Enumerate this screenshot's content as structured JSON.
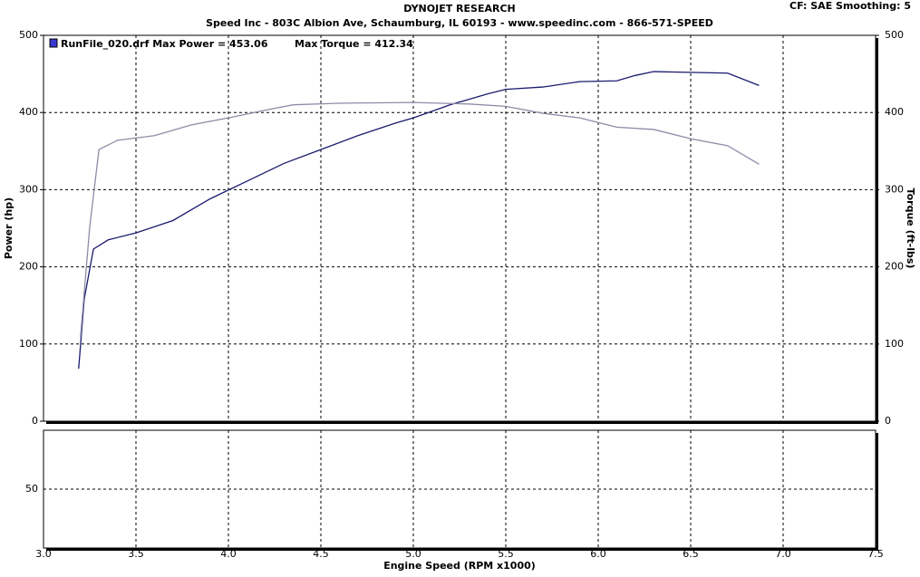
{
  "chart_data": {
    "type": "line",
    "title": "DYNOJET RESEARCH",
    "subtitle": "Speed Inc - 803C Albion Ave, Schaumburg, IL 60193 - www.speedinc.com - 866-571-SPEED",
    "settings_label": "CF: SAE  Smoothing: 5",
    "legend": [
      "RunFile_020.drf Max Power = 453.06",
      "Max Torque = 412.34"
    ],
    "xlabel": "Engine Speed (RPM x1000)",
    "ylabel": "Power (hp)",
    "y2label": "Torque (ft-lbs)",
    "xlim": [
      3.0,
      7.5
    ],
    "xticks": [
      {
        "value": 3.0,
        "label": "3.0"
      },
      {
        "value": 3.5,
        "label": "3.5"
      },
      {
        "value": 4.0,
        "label": "4.0"
      },
      {
        "value": 4.5,
        "label": "4.5"
      },
      {
        "value": 5.0,
        "label": "5.0"
      },
      {
        "value": 5.5,
        "label": "5.5"
      },
      {
        "value": 6.0,
        "label": "6.0"
      },
      {
        "value": 6.5,
        "label": "6.5"
      },
      {
        "value": 7.0,
        "label": "7.0"
      },
      {
        "value": 7.5,
        "label": "7.5"
      }
    ],
    "ylim": [
      0,
      500
    ],
    "yticks": [
      0,
      100,
      200,
      300,
      400,
      500
    ],
    "y2lim": [
      0,
      500
    ],
    "y2ticks": [
      0,
      100,
      200,
      300,
      400,
      500
    ],
    "lower_ylim": [
      0,
      100
    ],
    "lower_yticks": [
      50
    ],
    "grid": true,
    "series": [
      {
        "color": "#1a1a6e",
        "x": [
          3.19,
          3.22,
          3.27,
          3.35,
          3.5,
          3.7,
          3.9,
          4.1,
          4.3,
          4.5,
          4.7,
          4.9,
          5.0,
          5.2,
          5.4,
          5.5,
          5.7,
          5.9,
          6.1,
          6.2,
          6.3,
          6.5,
          6.7,
          6.87
        ],
        "values": [
          68,
          158,
          223,
          235,
          244,
          260,
          288,
          311,
          334,
          352,
          370,
          386,
          393,
          410,
          424,
          430,
          433,
          440,
          441,
          448,
          453,
          452,
          451,
          435
        ]
      },
      {
        "color": "#8c8ca8",
        "axis": "y2",
        "x": [
          3.2,
          3.25,
          3.3,
          3.4,
          3.6,
          3.8,
          4.0,
          4.2,
          4.35,
          4.6,
          5.0,
          5.3,
          5.5,
          5.7,
          5.9,
          6.1,
          6.3,
          6.5,
          6.7,
          6.87
        ],
        "values": [
          109,
          252,
          352,
          364,
          370,
          384,
          393,
          403,
          410,
          412,
          413,
          411,
          408,
          399,
          393,
          381,
          378,
          366,
          357,
          333
        ]
      }
    ]
  }
}
